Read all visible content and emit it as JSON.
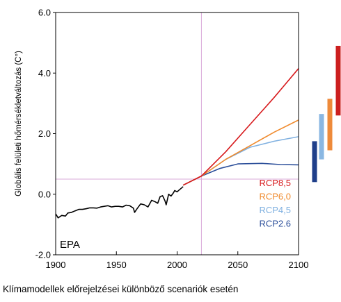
{
  "chart_data": {
    "type": "line",
    "ylabel": "Globális felületi hőmérsékletváltozás (C°)",
    "annotation": "EPA",
    "caption": "Klímamodellek előrejelzései különböző scenariók esetén",
    "xlim": [
      1900,
      2100
    ],
    "ylim": [
      -2.0,
      6.0
    ],
    "x_ticks": [
      1900,
      1950,
      2000,
      2050,
      2100
    ],
    "x_tick_labels": [
      "1900",
      "1950",
      "2000",
      "2050",
      "2100"
    ],
    "y_ticks": [
      -2.0,
      0.0,
      2.0,
      4.0,
      6.0
    ],
    "y_tick_labels": [
      "-2.0",
      "0.0",
      "2.0",
      "4.0",
      "6.0"
    ],
    "reference_x": 2020,
    "reference_y": 0.5,
    "observed": {
      "color": "#000000",
      "x": [
        1900,
        1902,
        1905,
        1908,
        1910,
        1913,
        1916,
        1919,
        1922,
        1925,
        1928,
        1931,
        1934,
        1937,
        1940,
        1943,
        1946,
        1949,
        1952,
        1955,
        1958,
        1961,
        1964,
        1965,
        1967,
        1970,
        1973,
        1976,
        1979,
        1982,
        1984,
        1986,
        1988,
        1990,
        1991,
        1993,
        1995,
        1997,
        1998,
        2000,
        2002,
        2005
      ],
      "values": [
        -0.65,
        -0.78,
        -0.7,
        -0.72,
        -0.62,
        -0.6,
        -0.55,
        -0.5,
        -0.5,
        -0.48,
        -0.45,
        -0.45,
        -0.46,
        -0.42,
        -0.4,
        -0.38,
        -0.42,
        -0.4,
        -0.4,
        -0.42,
        -0.36,
        -0.38,
        -0.46,
        -0.6,
        -0.48,
        -0.32,
        -0.35,
        -0.42,
        -0.2,
        -0.25,
        -0.3,
        -0.08,
        -0.05,
        -0.22,
        -0.35,
        0.0,
        -0.06,
        0.05,
        0.12,
        0.08,
        0.15,
        0.25
      ]
    },
    "series": [
      {
        "name": "RCP8,5",
        "color": "#d7191c",
        "x": [
          2005,
          2020,
          2040,
          2060,
          2080,
          2100
        ],
        "values": [
          0.3,
          0.6,
          1.4,
          2.3,
          3.2,
          4.15
        ]
      },
      {
        "name": "RCP6,0",
        "color": "#f08a2c",
        "x": [
          2005,
          2020,
          2040,
          2060,
          2080,
          2100
        ],
        "values": [
          0.3,
          0.6,
          1.15,
          1.6,
          2.05,
          2.45
        ]
      },
      {
        "name": "RCP4,5",
        "color": "#7fb0e0",
        "x": [
          2005,
          2020,
          2040,
          2060,
          2080,
          2100
        ],
        "values": [
          0.3,
          0.6,
          1.15,
          1.55,
          1.75,
          1.9
        ]
      },
      {
        "name": "RCP2.6",
        "color": "#2c4f9a",
        "x": [
          2005,
          2020,
          2035,
          2050,
          2070,
          2085,
          2100
        ],
        "values": [
          0.3,
          0.6,
          0.85,
          1.0,
          1.02,
          0.98,
          0.97
        ]
      }
    ],
    "ranges": [
      {
        "scenario": "RCP2.6",
        "color": "#1f3f8a",
        "low": 0.4,
        "high": 1.75
      },
      {
        "scenario": "RCP4,5",
        "color": "#8ab7e2",
        "low": 1.15,
        "high": 2.65
      },
      {
        "scenario": "RCP6,0",
        "color": "#ee8a3a",
        "low": 1.45,
        "high": 3.15
      },
      {
        "scenario": "RCP8,5",
        "color": "#cc1f1f",
        "low": 2.6,
        "high": 4.9
      }
    ],
    "legend_order": [
      "RCP8,5",
      "RCP6,0",
      "RCP4,5",
      "RCP2.6"
    ],
    "grid": false,
    "reference_line_color": "#d9a8d9"
  }
}
